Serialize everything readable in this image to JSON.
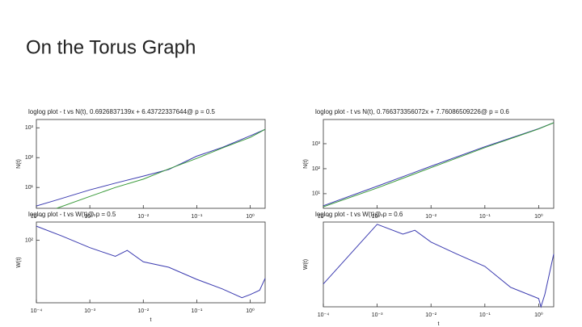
{
  "title": "On the Torus Graph",
  "chart_data": [
    {
      "type": "line",
      "title": "loglog plot - t vs N(t), 0.6926837139x + 6.43722337644@ p = 0.5",
      "ylabel": "N(t)",
      "xscale": "log",
      "yscale": "log",
      "x": [
        0.0001,
        0.00024,
        0.001,
        0.003,
        0.01,
        0.03,
        0.1,
        0.3,
        1,
        1.9
      ],
      "series": [
        {
          "color": "#3b3bb0",
          "values": [
            2.4,
            3.8,
            8.3,
            14,
            24,
            40,
            112,
            220,
            540,
            890
          ]
        },
        {
          "color": "#3a9a3a",
          "values": [
            null,
            2,
            5,
            10,
            19,
            42,
            94,
            210,
            475,
            890
          ]
        }
      ],
      "xlim": [
        0.0001,
        1.9
      ],
      "ylim": [
        2,
        1900
      ],
      "xticks": [
        {
          "value": 0.0001,
          "label": "10⁻⁴"
        },
        {
          "value": 0.001,
          "label": "10⁻³"
        },
        {
          "value": 0.01,
          "label": "10⁻²"
        },
        {
          "value": 0.1,
          "label": "10⁻¹"
        },
        {
          "value": 1,
          "label": "10⁰"
        }
      ],
      "yticks": [
        {
          "value": 10,
          "label": "10¹"
        },
        {
          "value": 100,
          "label": "10²"
        },
        {
          "value": 1000,
          "label": "10³"
        }
      ]
    },
    {
      "type": "line",
      "title": "loglog plot - t vs N(t), 0.766373356072x + 7.76086509226@ p = 0.6",
      "ylabel": "N(t)",
      "xscale": "log",
      "yscale": "log",
      "x": [
        0.0001,
        0.001,
        0.01,
        0.1,
        1,
        1.9
      ],
      "series": [
        {
          "color": "#3b3bb0",
          "values": [
            3.3,
            20,
            125,
            760,
            4000,
            6900
          ]
        },
        {
          "color": "#3a9a3a",
          "values": [
            3,
            17,
            110,
            700,
            3900,
            6900
          ]
        }
      ],
      "xlim": [
        0.0001,
        1.9
      ],
      "ylim": [
        2.6,
        9300
      ],
      "xticks": [
        {
          "value": 0.0001,
          "label": "10⁻⁴"
        },
        {
          "value": 0.001,
          "label": "10⁻³"
        },
        {
          "value": 0.01,
          "label": "10⁻²"
        },
        {
          "value": 0.1,
          "label": "10⁻¹"
        },
        {
          "value": 1,
          "label": "10⁰"
        }
      ],
      "yticks": [
        {
          "value": 10,
          "label": "10¹"
        },
        {
          "value": 100,
          "label": "10²"
        },
        {
          "value": 1000,
          "label": "10³"
        }
      ]
    },
    {
      "type": "line",
      "title": "loglog plot - t vs W(t)@ p = 0.5",
      "ylabel": "W(t)",
      "xlabel": "t",
      "xscale": "log",
      "yscale": "log",
      "x": [
        0.0001,
        0.0003,
        0.001,
        0.003,
        0.005,
        0.01,
        0.03,
        0.1,
        0.3,
        0.7,
        1,
        1.5,
        1.9
      ],
      "series": [
        {
          "color": "#3b3bb0",
          "values": [
            137,
            110,
            85,
            70,
            80,
            62,
            55,
            42,
            34,
            28,
            30,
            33,
            43
          ]
        }
      ],
      "xlim": [
        0.0001,
        1.9
      ],
      "ylim": [
        25,
        150
      ],
      "xticks": [
        {
          "value": 0.0001,
          "label": "10⁻⁴"
        },
        {
          "value": 0.001,
          "label": "10⁻³"
        },
        {
          "value": 0.01,
          "label": "10⁻²"
        },
        {
          "value": 0.1,
          "label": "10⁻¹"
        },
        {
          "value": 1,
          "label": "10⁰"
        }
      ],
      "yticks": [
        {
          "value": 100,
          "label": "10²"
        }
      ]
    },
    {
      "type": "line",
      "title": "loglog plot - t vs W(t)@ p = 0.6",
      "ylabel": "W(t)",
      "xlabel": "t",
      "xscale": "log",
      "yscale": "log",
      "x": [
        0.0001,
        0.001,
        0.003,
        0.005,
        0.01,
        0.03,
        0.1,
        0.3,
        1,
        1.1,
        1.3,
        1.9
      ],
      "series": [
        {
          "color": "#3b3bb0",
          "values": [
            18.6,
            94,
            72,
            80,
            58,
            42,
            30,
            17,
            12.5,
            10,
            14,
            42
          ]
        }
      ],
      "xlim": [
        0.0001,
        1.9
      ],
      "ylim": [
        10,
        100
      ],
      "xticks": [
        {
          "value": 0.0001,
          "label": "10⁻⁴"
        },
        {
          "value": 0.001,
          "label": "10⁻³"
        },
        {
          "value": 0.01,
          "label": "10⁻²"
        },
        {
          "value": 0.1,
          "label": "10⁻¹"
        },
        {
          "value": 1,
          "label": "10⁰"
        }
      ],
      "yticks": []
    }
  ]
}
